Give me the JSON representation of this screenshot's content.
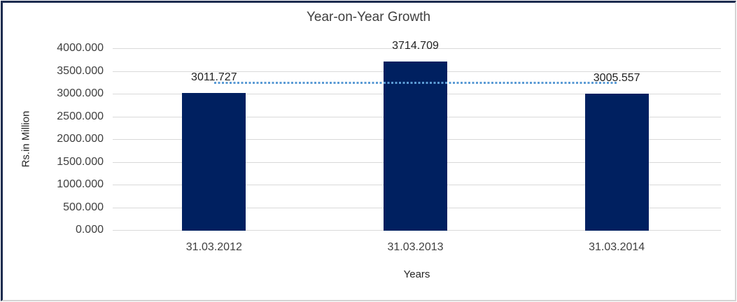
{
  "window": {
    "title": "Year-on-Year Growth chart"
  },
  "chart_data": {
    "type": "bar",
    "title": "Year-on-Year Growth",
    "categories": [
      "31.03.2012",
      "31.03.2013",
      "31.03.2014"
    ],
    "values": [
      3011.727,
      3714.709,
      3005.557
    ],
    "value_labels": [
      "3011.727",
      "3714.709",
      "3005.557"
    ],
    "xlabel": "Years",
    "ylabel": "Rs.in Million",
    "ylim": [
      0,
      4000
    ],
    "ytick_step": 500,
    "ytick_labels": [
      "4000.000",
      "3500.000",
      "3000.000",
      "2500.000",
      "2000.000",
      "1500.000",
      "1000.000",
      "500.000",
      "0.000"
    ],
    "grid": true,
    "legend": "none",
    "trendline": {
      "kind": "average-dotted",
      "value": 3244.0
    }
  },
  "colors": {
    "bar": "#002060",
    "trendline": "#5b9bd5",
    "gridline": "#d9d9d9",
    "axis_text": "#3f3f3f",
    "label_text": "#1f1f1f",
    "frame_dark": "#1c2b4e",
    "frame_light": "#d4d4d4",
    "background": "#ffffff"
  }
}
